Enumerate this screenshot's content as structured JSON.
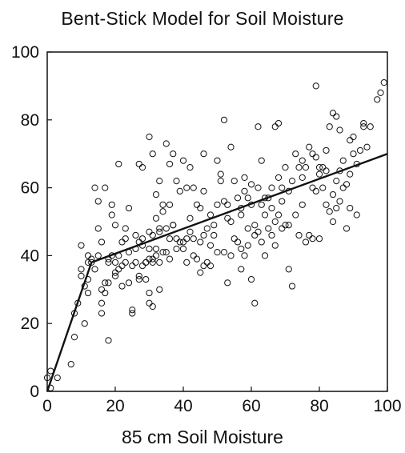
{
  "chart_data": {
    "type": "scatter",
    "title": "Bent-Stick Model for Soil Moisture",
    "xlabel": "85 cm Soil Moisture",
    "ylabel": "",
    "xlim": [
      0,
      100
    ],
    "ylim": [
      0,
      100
    ],
    "x_ticks": [
      0,
      20,
      40,
      60,
      80,
      100
    ],
    "y_ticks": [
      0,
      20,
      40,
      60,
      80,
      100
    ],
    "grid": false,
    "legend": "none",
    "series": [
      {
        "type": "scatter",
        "marker": "open-circle",
        "points": [
          [
            0,
            4
          ],
          [
            1,
            6
          ],
          [
            1,
            1
          ],
          [
            3,
            4
          ],
          [
            7,
            8
          ],
          [
            8,
            16
          ],
          [
            8,
            23
          ],
          [
            9,
            26
          ],
          [
            10,
            34
          ],
          [
            10,
            43
          ],
          [
            10,
            36
          ],
          [
            11,
            31
          ],
          [
            11,
            20
          ],
          [
            12,
            33
          ],
          [
            12,
            40
          ],
          [
            12,
            29
          ],
          [
            13,
            38
          ],
          [
            13,
            39
          ],
          [
            14,
            60
          ],
          [
            14,
            36
          ],
          [
            15,
            56
          ],
          [
            15,
            48
          ],
          [
            15,
            40
          ],
          [
            16,
            30
          ],
          [
            16,
            26
          ],
          [
            16,
            23
          ],
          [
            16,
            44
          ],
          [
            17,
            32
          ],
          [
            17,
            29
          ],
          [
            17,
            60
          ],
          [
            18,
            39
          ],
          [
            18,
            38
          ],
          [
            18,
            15
          ],
          [
            18,
            32
          ],
          [
            19,
            52
          ],
          [
            19,
            55
          ],
          [
            20,
            49
          ],
          [
            20,
            38
          ],
          [
            20,
            35
          ],
          [
            20,
            34
          ],
          [
            21,
            67
          ],
          [
            21,
            36
          ],
          [
            22,
            44
          ],
          [
            22,
            31
          ],
          [
            23,
            48
          ],
          [
            23,
            45
          ],
          [
            23,
            38
          ],
          [
            24,
            54
          ],
          [
            24,
            41
          ],
          [
            24,
            32
          ],
          [
            25,
            23
          ],
          [
            25,
            24
          ],
          [
            25,
            37
          ],
          [
            26,
            46
          ],
          [
            26,
            42
          ],
          [
            27,
            67
          ],
          [
            27,
            44
          ],
          [
            27,
            33
          ],
          [
            28,
            66
          ],
          [
            28,
            45
          ],
          [
            28,
            37
          ],
          [
            28,
            43
          ],
          [
            29,
            38
          ],
          [
            29,
            33
          ],
          [
            30,
            75
          ],
          [
            30,
            47
          ],
          [
            30,
            39
          ],
          [
            30,
            42
          ],
          [
            30,
            26
          ],
          [
            30,
            29
          ],
          [
            31,
            70
          ],
          [
            31,
            39
          ],
          [
            31,
            38
          ],
          [
            31,
            25
          ],
          [
            32,
            58
          ],
          [
            32,
            51
          ],
          [
            32,
            42
          ],
          [
            32,
            40
          ],
          [
            33,
            62
          ],
          [
            33,
            48
          ],
          [
            33,
            47
          ],
          [
            33,
            30
          ],
          [
            33,
            38
          ],
          [
            34,
            53
          ],
          [
            34,
            55
          ],
          [
            35,
            73
          ],
          [
            35,
            48
          ],
          [
            35,
            41
          ],
          [
            36,
            67
          ],
          [
            36,
            55
          ],
          [
            36,
            45
          ],
          [
            37,
            70
          ],
          [
            37,
            49
          ],
          [
            38,
            62
          ],
          [
            38,
            42
          ],
          [
            38,
            45
          ],
          [
            39,
            59
          ],
          [
            39,
            44
          ],
          [
            40,
            68
          ],
          [
            40,
            44
          ],
          [
            40,
            42
          ],
          [
            41,
            60
          ],
          [
            41,
            45
          ],
          [
            41,
            38
          ],
          [
            42,
            66
          ],
          [
            42,
            51
          ],
          [
            42,
            47
          ],
          [
            43,
            60
          ],
          [
            43,
            45
          ],
          [
            43,
            40
          ],
          [
            44,
            39
          ],
          [
            45,
            54
          ],
          [
            45,
            44
          ],
          [
            45,
            35
          ],
          [
            46,
            70
          ],
          [
            46,
            46
          ],
          [
            46,
            37
          ],
          [
            47,
            48
          ],
          [
            47,
            38
          ],
          [
            48,
            52
          ],
          [
            48,
            43
          ],
          [
            48,
            37
          ],
          [
            49,
            49
          ],
          [
            49,
            46
          ],
          [
            50,
            68
          ],
          [
            50,
            55
          ],
          [
            50,
            41
          ],
          [
            51,
            62
          ],
          [
            51,
            64
          ],
          [
            52,
            80
          ],
          [
            52,
            56
          ],
          [
            52,
            41
          ],
          [
            53,
            55
          ],
          [
            53,
            32
          ],
          [
            54,
            72
          ],
          [
            54,
            50
          ],
          [
            54,
            40
          ],
          [
            55,
            62
          ],
          [
            55,
            45
          ],
          [
            56,
            44
          ],
          [
            56,
            57
          ],
          [
            57,
            52
          ],
          [
            57,
            42
          ],
          [
            57,
            36
          ],
          [
            58,
            63
          ],
          [
            58,
            59
          ],
          [
            58,
            40
          ],
          [
            59,
            57
          ],
          [
            59,
            43
          ],
          [
            60,
            55
          ],
          [
            60,
            61
          ],
          [
            60,
            33
          ],
          [
            61,
            49
          ],
          [
            61,
            46
          ],
          [
            61,
            26
          ],
          [
            62,
            78
          ],
          [
            62,
            60
          ],
          [
            62,
            47
          ],
          [
            63,
            68
          ],
          [
            63,
            55
          ],
          [
            63,
            44
          ],
          [
            64,
            52
          ],
          [
            64,
            40
          ],
          [
            65,
            57
          ],
          [
            65,
            48
          ],
          [
            66,
            60
          ],
          [
            66,
            46
          ],
          [
            67,
            78
          ],
          [
            67,
            50
          ],
          [
            67,
            43
          ],
          [
            68,
            79
          ],
          [
            68,
            63
          ],
          [
            68,
            52
          ],
          [
            69,
            56
          ],
          [
            69,
            48
          ],
          [
            70,
            66
          ],
          [
            70,
            49
          ],
          [
            71,
            59
          ],
          [
            71,
            36
          ],
          [
            72,
            62
          ],
          [
            72,
            31
          ],
          [
            73,
            70
          ],
          [
            73,
            52
          ],
          [
            74,
            66
          ],
          [
            74,
            46
          ],
          [
            75,
            68
          ],
          [
            75,
            55
          ],
          [
            76,
            66
          ],
          [
            76,
            44
          ],
          [
            77,
            72
          ],
          [
            77,
            46
          ],
          [
            78,
            70
          ],
          [
            78,
            60
          ],
          [
            78,
            45
          ],
          [
            79,
            90
          ],
          [
            79,
            59
          ],
          [
            79,
            69
          ],
          [
            80,
            66
          ],
          [
            80,
            64
          ],
          [
            80,
            45
          ],
          [
            81,
            66
          ],
          [
            81,
            60
          ],
          [
            82,
            71
          ],
          [
            82,
            55
          ],
          [
            83,
            78
          ],
          [
            83,
            53
          ],
          [
            84,
            82
          ],
          [
            84,
            58
          ],
          [
            84,
            50
          ],
          [
            85,
            81
          ],
          [
            85,
            62
          ],
          [
            85,
            54
          ],
          [
            86,
            77
          ],
          [
            86,
            65
          ],
          [
            86,
            56
          ],
          [
            87,
            68
          ],
          [
            87,
            60
          ],
          [
            88,
            48
          ],
          [
            88,
            61
          ],
          [
            89,
            54
          ],
          [
            89,
            64
          ],
          [
            90,
            70
          ],
          [
            90,
            75
          ],
          [
            91,
            52
          ],
          [
            92,
            71
          ],
          [
            93,
            79
          ],
          [
            93,
            78
          ],
          [
            94,
            72
          ],
          [
            95,
            78
          ],
          [
            97,
            86
          ],
          [
            98,
            88
          ],
          [
            99,
            91
          ],
          [
            91,
            67
          ],
          [
            89,
            74
          ],
          [
            71,
            49
          ],
          [
            66,
            54
          ],
          [
            59,
            48
          ],
          [
            44,
            55
          ],
          [
            36,
            39
          ],
          [
            34,
            41
          ],
          [
            27,
            34
          ],
          [
            26,
            38
          ],
          [
            21,
            40
          ],
          [
            12,
            38
          ],
          [
            19,
            40
          ],
          [
            22,
            37
          ],
          [
            29,
            38
          ],
          [
            31,
            46
          ],
          [
            37,
            49
          ],
          [
            46,
            59
          ],
          [
            53,
            51
          ],
          [
            57,
            54
          ],
          [
            64,
            57
          ],
          [
            69,
            60
          ],
          [
            75,
            63
          ],
          [
            82,
            65
          ]
        ]
      },
      {
        "type": "line",
        "name": "",
        "points": [
          [
            0,
            0
          ],
          [
            13,
            38
          ],
          [
            100,
            70
          ]
        ]
      }
    ]
  }
}
